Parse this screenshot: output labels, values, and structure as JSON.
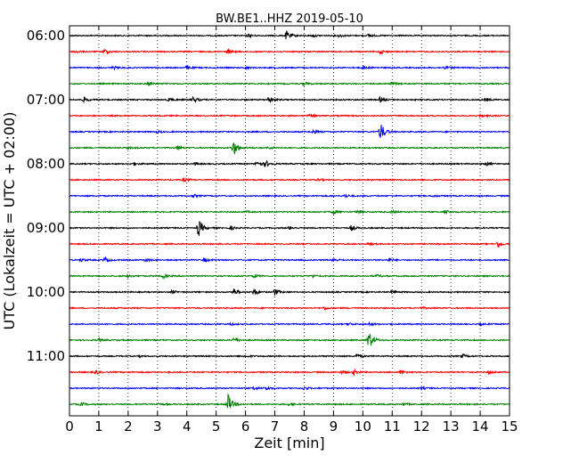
{
  "chart_data": {
    "type": "line",
    "title": "BW.BE1..HHZ 2019-05-10",
    "xlabel": "Zeit  [min]",
    "ylabel": "UTC (Lokalzeit = UTC + 02:00)",
    "xlim": [
      0,
      15
    ],
    "xticks": [
      "0",
      "1",
      "2",
      "3",
      "4",
      "5",
      "6",
      "7",
      "8",
      "9",
      "10",
      "11",
      "12",
      "13",
      "14",
      "15"
    ],
    "yticks": [
      "06:00",
      "07:00",
      "08:00",
      "09:00",
      "10:00",
      "11:00"
    ],
    "grid": true,
    "series_colors": [
      "#000000",
      "#ff0000",
      "#0000ff",
      "#008000"
    ],
    "rows": [
      {
        "time": "06:00",
        "events": [
          [
            7.4,
            1.0
          ],
          [
            6.1,
            0.3
          ],
          [
            9.2,
            0.3
          ],
          [
            10.2,
            0.3
          ],
          [
            8.3,
            0.3
          ]
        ]
      },
      {
        "time": "06:15",
        "events": [
          [
            1.2,
            0.6
          ],
          [
            5.4,
            0.5
          ],
          [
            10.6,
            0.4
          ],
          [
            0.2,
            0.3
          ]
        ]
      },
      {
        "time": "06:30",
        "events": [
          [
            1.5,
            0.3
          ],
          [
            4.0,
            0.3
          ],
          [
            10.0,
            0.4
          ],
          [
            12.8,
            0.3
          ],
          [
            6.0,
            0.2
          ]
        ]
      },
      {
        "time": "06:45",
        "events": [
          [
            2.7,
            0.4
          ],
          [
            8.0,
            0.3
          ],
          [
            11.0,
            0.3
          ]
        ]
      },
      {
        "time": "07:00",
        "events": [
          [
            0.5,
            0.5
          ],
          [
            4.2,
            0.7
          ],
          [
            6.8,
            0.8
          ],
          [
            10.6,
            0.6
          ],
          [
            3.4,
            0.4
          ],
          [
            14.2,
            0.3
          ]
        ]
      },
      {
        "time": "07:15",
        "events": [
          [
            8.2,
            0.4
          ],
          [
            14.0,
            0.3
          ]
        ]
      },
      {
        "time": "07:30",
        "events": [
          [
            10.6,
            2.0
          ],
          [
            8.3,
            0.4
          ],
          [
            3.0,
            0.2
          ]
        ]
      },
      {
        "time": "07:45",
        "events": [
          [
            5.6,
            1.7
          ],
          [
            3.7,
            0.4
          ],
          [
            6.8,
            0.3
          ],
          [
            2.0,
            0.2
          ]
        ]
      },
      {
        "time": "08:00",
        "events": [
          [
            6.4,
            0.8
          ],
          [
            6.7,
            0.6
          ],
          [
            2.2,
            0.3
          ],
          [
            14.2,
            0.4
          ],
          [
            4.3,
            0.3
          ]
        ]
      },
      {
        "time": "08:15",
        "events": [
          [
            3.9,
            0.4
          ],
          [
            8.5,
            0.2
          ]
        ]
      },
      {
        "time": "08:30",
        "events": [
          [
            4.2,
            0.3
          ],
          [
            9.4,
            0.3
          ],
          [
            12.4,
            0.2
          ]
        ]
      },
      {
        "time": "08:45",
        "events": [
          [
            12.8,
            0.5
          ],
          [
            9.0,
            0.4
          ],
          [
            9.8,
            0.4
          ],
          [
            11.0,
            0.3
          ],
          [
            6.0,
            0.2
          ]
        ]
      },
      {
        "time": "09:00",
        "events": [
          [
            4.4,
            1.9
          ],
          [
            9.6,
            0.6
          ],
          [
            5.5,
            0.4
          ],
          [
            7.5,
            0.3
          ]
        ]
      },
      {
        "time": "09:15",
        "events": [
          [
            14.6,
            0.7
          ],
          [
            10.2,
            0.2
          ]
        ]
      },
      {
        "time": "09:30",
        "events": [
          [
            1.2,
            0.6
          ],
          [
            4.6,
            0.4
          ],
          [
            9.0,
            0.3
          ],
          [
            10.9,
            0.3
          ],
          [
            0.4,
            0.3
          ],
          [
            2.6,
            0.3
          ]
        ]
      },
      {
        "time": "09:45",
        "events": [
          [
            3.2,
            0.5
          ],
          [
            6.3,
            0.4
          ],
          [
            8.3,
            0.3
          ],
          [
            2.0,
            0.3
          ],
          [
            10.5,
            0.3
          ]
        ]
      },
      {
        "time": "10:00",
        "events": [
          [
            5.6,
            0.8
          ],
          [
            6.3,
            0.7
          ],
          [
            7.0,
            0.7
          ],
          [
            3.5,
            0.4
          ],
          [
            11.0,
            0.3
          ]
        ]
      },
      {
        "time": "10:15",
        "events": [
          [
            8.7,
            0.3
          ],
          [
            12.0,
            0.2
          ]
        ]
      },
      {
        "time": "10:30",
        "events": [
          [
            10.2,
            0.3
          ],
          [
            9.5,
            0.3
          ],
          [
            5.5,
            0.2
          ],
          [
            14.0,
            0.2
          ]
        ]
      },
      {
        "time": "10:45",
        "events": [
          [
            10.2,
            2.1
          ],
          [
            5.6,
            0.5
          ],
          [
            1.0,
            0.3
          ]
        ]
      },
      {
        "time": "11:00",
        "events": [
          [
            9.8,
            0.4
          ],
          [
            13.4,
            0.4
          ],
          [
            6.0,
            0.3
          ],
          [
            2.4,
            0.2
          ]
        ]
      },
      {
        "time": "11:15",
        "events": [
          [
            0.9,
            0.4
          ],
          [
            9.7,
            0.5
          ],
          [
            11.3,
            0.4
          ],
          [
            14.3,
            0.4
          ],
          [
            9.3,
            0.3
          ]
        ]
      },
      {
        "time": "11:30",
        "events": [
          [
            6.7,
            0.4
          ],
          [
            8.0,
            0.3
          ],
          [
            6.3,
            0.3
          ],
          [
            12.0,
            0.2
          ]
        ]
      },
      {
        "time": "11:45",
        "events": [
          [
            5.4,
            2.2
          ],
          [
            0.4,
            0.4
          ],
          [
            7.5,
            0.3
          ],
          [
            3.0,
            0.3
          ],
          [
            11.4,
            0.2
          ]
        ]
      }
    ]
  }
}
